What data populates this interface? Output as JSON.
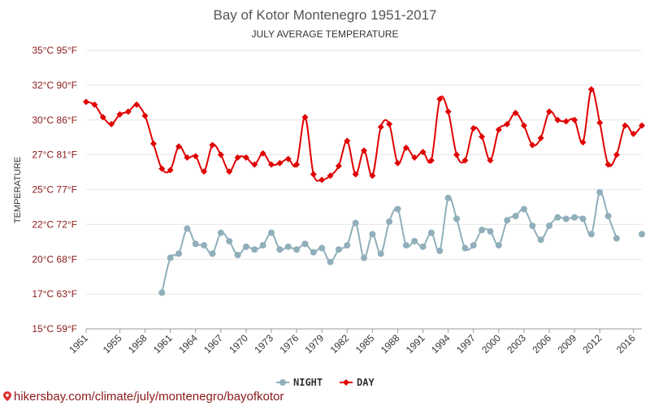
{
  "chart_data": {
    "type": "line",
    "title": "Bay of Kotor Montenegro 1951-2017",
    "subtitle": "JULY AVERAGE TEMPERATURE",
    "ylabel": "TEMPERATURE",
    "xlabel": "",
    "ylim": [
      15,
      35
    ],
    "xlim": [
      1951,
      2017
    ],
    "y_ticks": [
      {
        "value": 15,
        "label": "15°C 59°F"
      },
      {
        "value": 17.5,
        "label": "17°C 63°F"
      },
      {
        "value": 20,
        "label": "20°C 68°F"
      },
      {
        "value": 22.5,
        "label": "22°C 72°F"
      },
      {
        "value": 25,
        "label": "25°C 77°F"
      },
      {
        "value": 27.5,
        "label": "27°C 81°F"
      },
      {
        "value": 30,
        "label": "30°C 86°F"
      },
      {
        "value": 32.5,
        "label": "32°C 90°F"
      },
      {
        "value": 35,
        "label": "35°C 95°F"
      }
    ],
    "x_ticks": [
      "1951",
      "1955",
      "1958",
      "1961",
      "1964",
      "1967",
      "1970",
      "1973",
      "1976",
      "1979",
      "1982",
      "1985",
      "1988",
      "1991",
      "1994",
      "1997",
      "2000",
      "2003",
      "2006",
      "2009",
      "2012",
      "2016"
    ],
    "legend_position": "bottom-center",
    "series": [
      {
        "name": "NIGHT",
        "color": "#90afbb",
        "x": [
          1960,
          1961,
          1962,
          1963,
          1964,
          1965,
          1966,
          1967,
          1968,
          1969,
          1970,
          1971,
          1972,
          1973,
          1974,
          1975,
          1976,
          1977,
          1978,
          1979,
          1980,
          1981,
          1982,
          1983,
          1984,
          1985,
          1986,
          1987,
          1988,
          1989,
          1990,
          1991,
          1992,
          1993,
          1994,
          1995,
          1996,
          1997,
          1998,
          1999,
          2000,
          2001,
          2002,
          2003,
          2004,
          2005,
          2006,
          2007,
          2008,
          2009,
          2010,
          2011,
          2012,
          2013,
          2014,
          2017
        ],
        "values": [
          17.6,
          20.1,
          20.4,
          22.2,
          21.1,
          21.0,
          20.4,
          21.9,
          21.3,
          20.3,
          20.9,
          20.7,
          21.0,
          21.9,
          20.7,
          20.9,
          20.7,
          21.1,
          20.5,
          20.8,
          19.8,
          20.7,
          21.0,
          22.6,
          20.1,
          21.8,
          20.4,
          22.7,
          23.6,
          21.0,
          21.3,
          20.9,
          21.9,
          20.6,
          24.4,
          22.9,
          20.8,
          21.0,
          22.1,
          22.0,
          21.0,
          22.8,
          23.1,
          23.6,
          22.4,
          21.4,
          22.4,
          23.0,
          22.9,
          23.0,
          22.9,
          21.8,
          24.8,
          23.1,
          21.5,
          21.8
        ]
      },
      {
        "name": "DAY",
        "color": "#e00000",
        "x": [
          1951,
          1952,
          1953,
          1954,
          1955,
          1956,
          1957,
          1958,
          1959,
          1960,
          1961,
          1962,
          1963,
          1964,
          1965,
          1966,
          1967,
          1968,
          1969,
          1970,
          1971,
          1972,
          1973,
          1974,
          1975,
          1976,
          1977,
          1978,
          1979,
          1980,
          1981,
          1982,
          1983,
          1984,
          1985,
          1986,
          1987,
          1988,
          1989,
          1990,
          1991,
          1992,
          1993,
          1994,
          1995,
          1996,
          1997,
          1998,
          1999,
          2000,
          2001,
          2002,
          2003,
          2004,
          2005,
          2006,
          2007,
          2008,
          2009,
          2010,
          2011,
          2012,
          2013,
          2014,
          2015,
          2016,
          2017
        ],
        "values": [
          31.3,
          31.1,
          30.2,
          29.7,
          30.4,
          30.6,
          31.1,
          30.3,
          28.3,
          26.5,
          26.4,
          28.1,
          27.3,
          27.4,
          26.3,
          28.2,
          27.5,
          26.3,
          27.3,
          27.3,
          26.8,
          27.6,
          26.8,
          26.9,
          27.2,
          26.8,
          30.2,
          26.1,
          25.7,
          26.0,
          26.7,
          28.5,
          26.1,
          27.8,
          26.0,
          29.5,
          29.7,
          26.9,
          28.0,
          27.3,
          27.7,
          27.1,
          31.5,
          30.6,
          27.5,
          27.1,
          29.4,
          28.8,
          27.1,
          29.3,
          29.7,
          30.5,
          29.6,
          28.2,
          28.7,
          30.6,
          30.0,
          29.9,
          30.0,
          28.4,
          32.2,
          29.8,
          26.8,
          27.5,
          29.6,
          29.0,
          29.6
        ]
      }
    ]
  },
  "source": {
    "url_text": "hikersbay.com/climate/july/montenegro/bayofkotor"
  }
}
